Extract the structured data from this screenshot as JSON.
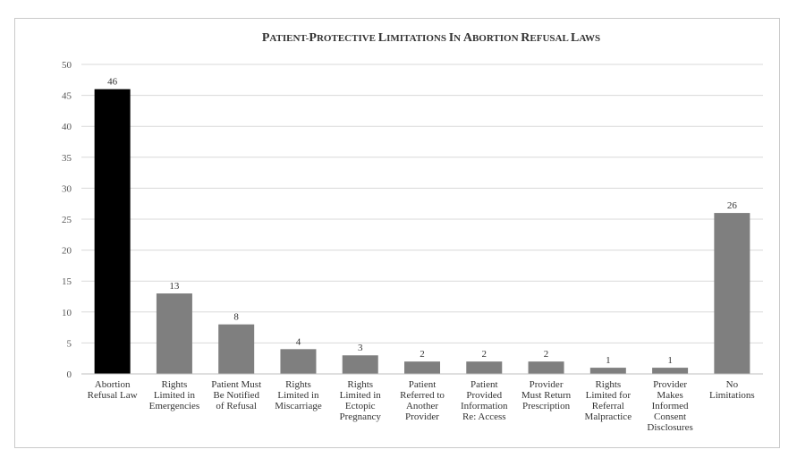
{
  "chart_data": {
    "type": "bar",
    "title": "Patient-Protective Limitations in Abortion Refusal Laws",
    "xlabel": "",
    "ylabel": "",
    "ylim": [
      0,
      50
    ],
    "yticks": [
      0,
      5,
      10,
      15,
      20,
      25,
      30,
      35,
      40,
      45,
      50
    ],
    "grid": true,
    "legend": "none",
    "categories": [
      [
        "Abortion",
        "Refusal Law"
      ],
      [
        "Rights",
        "Limited in",
        "Emergencies"
      ],
      [
        "Patient Must",
        "Be Notified",
        "of Refusal"
      ],
      [
        "Rights",
        "Limited in",
        "Miscarriage"
      ],
      [
        "Rights",
        "Limited in",
        "Ectopic",
        "Pregnancy"
      ],
      [
        "Patient",
        "Referred to",
        "Another",
        "Provider"
      ],
      [
        "Patient",
        "Provided",
        "Information",
        "Re: Access"
      ],
      [
        "Provider",
        "Must Return",
        "Prescription"
      ],
      [
        "Rights",
        "Limited for",
        "Referral",
        "Malpractice"
      ],
      [
        "Provider",
        "Makes",
        "Informed",
        "Consent",
        "Disclosures"
      ],
      [
        "No",
        "Limitations"
      ]
    ],
    "values": [
      46,
      13,
      8,
      4,
      3,
      2,
      2,
      2,
      1,
      1,
      26
    ],
    "colors": {
      "highlight_bar": "#000000",
      "bar": "#7f7f7f",
      "gridline": "#d9d9d9"
    }
  }
}
